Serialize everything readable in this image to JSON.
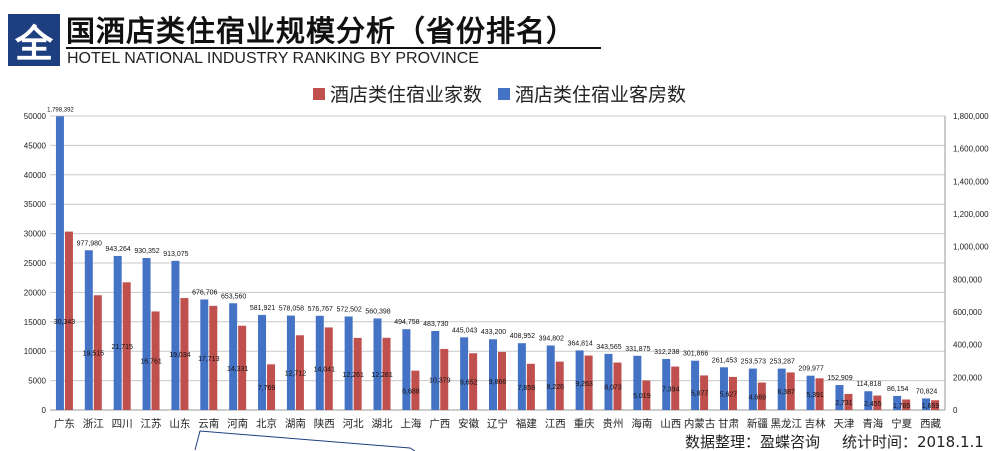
{
  "header": {
    "logo_char": "全",
    "title": "国酒店类住宿业规模分析（省份排名）",
    "subtitle": "HOTEL NATIONAL INDUSTRY RANKING BY PROVINCE"
  },
  "footer": {
    "source": "数据整理：盈蝶咨询",
    "date": "统计时间：2018.1.1"
  },
  "chart_data": {
    "type": "bar",
    "title": "",
    "legend_position": "top-right",
    "categories": [
      "广东",
      "浙江",
      "四川",
      "江苏",
      "山东",
      "云南",
      "河南",
      "北京",
      "湖南",
      "陕西",
      "河北",
      "湖北",
      "上海",
      "广西",
      "安徽",
      "辽宁",
      "福建",
      "江西",
      "重庆",
      "贵州",
      "海南",
      "山西",
      "内蒙古",
      "甘肃",
      "新疆",
      "黑龙江",
      "吉林",
      "天津",
      "青海",
      "宁夏",
      "西藏"
    ],
    "series": [
      {
        "name": "酒店类住宿业家数",
        "axis": "left",
        "color": "#c0504d",
        "values": [
          30343,
          19515,
          21715,
          16761,
          19034,
          17713,
          14331,
          7769,
          12712,
          14041,
          12261,
          12281,
          6688,
          10379,
          9652,
          9866,
          7859,
          8226,
          9263,
          8073,
          5019,
          7394,
          5877,
          5627,
          4669,
          6387,
          5391,
          2731,
          2455,
          1785,
          1659
        ],
        "labels": [
          "30,343",
          "19,515",
          "21,715",
          "16,761",
          "19,034",
          "17,713",
          "14,331",
          "7,769",
          "12,712",
          "14,041",
          "12,261",
          "12,281",
          "6,688",
          "10,379",
          "9,652",
          "9,866",
          "7,859",
          "8,226",
          "9,263",
          "8,073",
          "5,019",
          "7,394",
          "5,877",
          "5,627",
          "4,669",
          "6,387",
          "5,391",
          "2,731",
          "2,455",
          "1,785",
          "1,659"
        ]
      },
      {
        "name": "酒店类住宿业客房数",
        "axis": "right",
        "color": "#4472c4",
        "values": [
          1798392,
          977980,
          943264,
          930352,
          913075,
          676706,
          653560,
          581921,
          578058,
          576767,
          572502,
          560398,
          494758,
          483730,
          445043,
          433200,
          408952,
          394802,
          364814,
          343565,
          331875,
          312238,
          301866,
          261453,
          253573,
          253287,
          209977,
          152909,
          114818,
          86154,
          70824
        ],
        "labels": [
          "1,798,392",
          "977,980",
          "943,264",
          "930,352",
          "913,075",
          "676,706",
          "653,560",
          "581,921",
          "578,058",
          "576,767",
          "572,502",
          "560,398",
          "494,758",
          "483,730",
          "445,043",
          "433,200",
          "408,952",
          "394,802",
          "364,814",
          "343,565",
          "331,875",
          "312,238",
          "301,866",
          "261,453",
          "253,573",
          "253,287",
          "209,977",
          "152,909",
          "114,818",
          "86,154",
          "70,824"
        ]
      }
    ],
    "ylim_left": [
      0,
      50000
    ],
    "yticks_left": [
      "0",
      "5000",
      "10000",
      "15000",
      "20000",
      "25000",
      "30000",
      "35000",
      "40000",
      "45000",
      "50000"
    ],
    "ylim_right": [
      0,
      1800000
    ],
    "yticks_right": [
      "0",
      "200,000",
      "400,000",
      "600,000",
      "800,000",
      "1,000,000",
      "1,200,000",
      "1,400,000",
      "1,600,000",
      "1,800,000"
    ],
    "grid": true
  }
}
